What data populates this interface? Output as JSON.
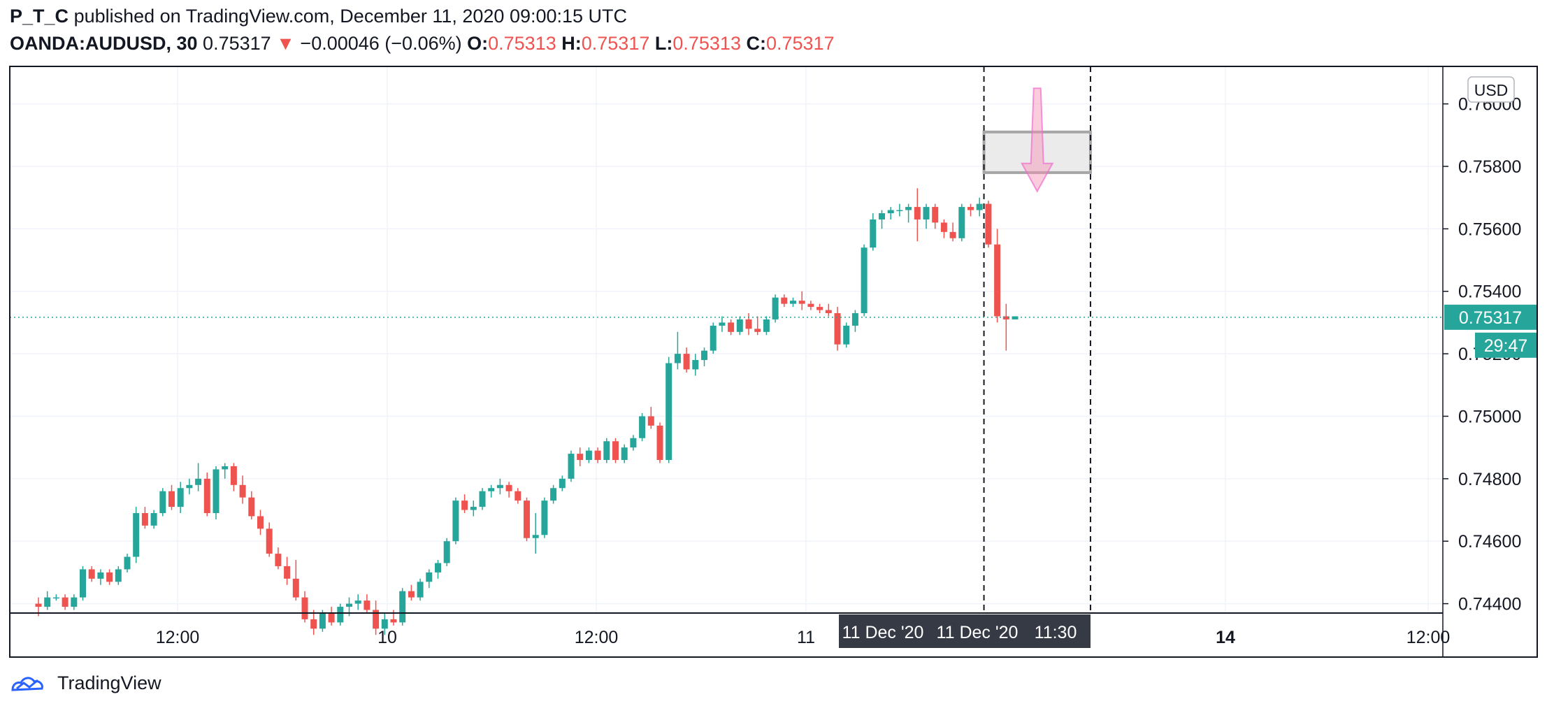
{
  "header": {
    "author": "P_T_C",
    "published": "published on TradingView.com, December 11, 2020 09:00:15 UTC",
    "symbol": "OANDA:AUDUSD, 30",
    "last": "0.75317",
    "change": "−0.00046 (−0.06%)",
    "o_label": "O:",
    "o_value": "0.75313",
    "h_label": "H:",
    "h_value": "0.75317",
    "l_label": "L:",
    "l_value": "0.75313",
    "c_label": "C:",
    "c_value": "0.75317"
  },
  "footer": {
    "brand": "TradingView"
  },
  "colors": {
    "up": "#26a69a",
    "down": "#ef5350",
    "grid": "#f0f3fa",
    "arrow": "#f48fb1"
  },
  "chart_data": {
    "type": "candlestick",
    "currency_label": "USD",
    "ylim": [
      0.7437,
      0.7612
    ],
    "y_ticks": [
      "0.74400",
      "0.74600",
      "0.74800",
      "0.75000",
      "0.75200",
      "0.75400",
      "0.75600",
      "0.75800",
      "0.76000"
    ],
    "x_ticks": [
      "12:00",
      "10",
      "12:00",
      "11",
      "14",
      "12:00"
    ],
    "x_tick_bold": [
      false,
      false,
      false,
      false,
      true,
      false
    ],
    "last_price_label": "0.75317",
    "last_price": 0.75317,
    "countdown_label": "29:47",
    "marker_labels": [
      "11 Dec '20",
      "11 Dec '20",
      "11:30"
    ],
    "candles": [
      [
        0.744,
        0.7442,
        0.7436,
        0.7439
      ],
      [
        0.7439,
        0.7444,
        0.7438,
        0.7442
      ],
      [
        0.7442,
        0.7443,
        0.7441,
        0.7442
      ],
      [
        0.7442,
        0.7443,
        0.7438,
        0.7439
      ],
      [
        0.7439,
        0.7443,
        0.7438,
        0.7442
      ],
      [
        0.7442,
        0.7452,
        0.7441,
        0.7451
      ],
      [
        0.7451,
        0.7452,
        0.7447,
        0.7448
      ],
      [
        0.7448,
        0.7451,
        0.7446,
        0.745
      ],
      [
        0.745,
        0.7451,
        0.7446,
        0.7447
      ],
      [
        0.7447,
        0.7452,
        0.7446,
        0.7451
      ],
      [
        0.7451,
        0.7456,
        0.745,
        0.7455
      ],
      [
        0.7455,
        0.7471,
        0.7453,
        0.7469
      ],
      [
        0.7469,
        0.7471,
        0.7464,
        0.7465
      ],
      [
        0.7465,
        0.747,
        0.7464,
        0.7469
      ],
      [
        0.7469,
        0.7477,
        0.7468,
        0.7476
      ],
      [
        0.7476,
        0.7478,
        0.747,
        0.7471
      ],
      [
        0.7471,
        0.7479,
        0.7469,
        0.7477
      ],
      [
        0.7477,
        0.748,
        0.7475,
        0.7478
      ],
      [
        0.7478,
        0.7485,
        0.7476,
        0.748
      ],
      [
        0.748,
        0.7482,
        0.7468,
        0.7469
      ],
      [
        0.7469,
        0.7484,
        0.7467,
        0.7483
      ],
      [
        0.7483,
        0.7485,
        0.748,
        0.7484
      ],
      [
        0.7484,
        0.7485,
        0.7476,
        0.7478
      ],
      [
        0.7478,
        0.7481,
        0.7472,
        0.7474
      ],
      [
        0.7474,
        0.7476,
        0.7467,
        0.7468
      ],
      [
        0.7468,
        0.747,
        0.7462,
        0.7464
      ],
      [
        0.7464,
        0.7466,
        0.7455,
        0.7456
      ],
      [
        0.7456,
        0.7458,
        0.7451,
        0.7452
      ],
      [
        0.7452,
        0.7455,
        0.7446,
        0.7448
      ],
      [
        0.7448,
        0.7454,
        0.7441,
        0.7442
      ],
      [
        0.7442,
        0.7444,
        0.7434,
        0.7435
      ],
      [
        0.7435,
        0.7438,
        0.743,
        0.7432
      ],
      [
        0.7432,
        0.7438,
        0.7431,
        0.7437
      ],
      [
        0.7437,
        0.7439,
        0.7433,
        0.7434
      ],
      [
        0.7434,
        0.744,
        0.7433,
        0.7439
      ],
      [
        0.7439,
        0.7442,
        0.7436,
        0.744
      ],
      [
        0.744,
        0.7443,
        0.7438,
        0.7441
      ],
      [
        0.7441,
        0.7443,
        0.7437,
        0.7438
      ],
      [
        0.7438,
        0.7441,
        0.743,
        0.7432
      ],
      [
        0.7432,
        0.7437,
        0.743,
        0.7435
      ],
      [
        0.7435,
        0.7438,
        0.7433,
        0.7434
      ],
      [
        0.7434,
        0.7445,
        0.7433,
        0.7444
      ],
      [
        0.7444,
        0.7446,
        0.7441,
        0.7442
      ],
      [
        0.7442,
        0.7448,
        0.7441,
        0.7447
      ],
      [
        0.7447,
        0.7451,
        0.7445,
        0.745
      ],
      [
        0.745,
        0.7454,
        0.7448,
        0.7453
      ],
      [
        0.7453,
        0.7461,
        0.7452,
        0.746
      ],
      [
        0.746,
        0.7474,
        0.7459,
        0.7473
      ],
      [
        0.7473,
        0.7475,
        0.7469,
        0.747
      ],
      [
        0.747,
        0.7473,
        0.7468,
        0.7471
      ],
      [
        0.7471,
        0.7477,
        0.747,
        0.7476
      ],
      [
        0.7476,
        0.7478,
        0.7474,
        0.7477
      ],
      [
        0.7477,
        0.748,
        0.7475,
        0.7478
      ],
      [
        0.7478,
        0.7479,
        0.7474,
        0.7476
      ],
      [
        0.7476,
        0.7477,
        0.7472,
        0.7473
      ],
      [
        0.7473,
        0.7474,
        0.746,
        0.7461
      ],
      [
        0.7461,
        0.7469,
        0.7456,
        0.7462
      ],
      [
        0.7462,
        0.7474,
        0.7461,
        0.7473
      ],
      [
        0.7473,
        0.7478,
        0.7472,
        0.7477
      ],
      [
        0.7477,
        0.7481,
        0.7476,
        0.748
      ],
      [
        0.748,
        0.7489,
        0.7479,
        0.7488
      ],
      [
        0.7488,
        0.749,
        0.7484,
        0.7486
      ],
      [
        0.7486,
        0.749,
        0.7485,
        0.7489
      ],
      [
        0.7489,
        0.749,
        0.7485,
        0.7486
      ],
      [
        0.7486,
        0.7493,
        0.7485,
        0.7492
      ],
      [
        0.7492,
        0.7493,
        0.7485,
        0.7486
      ],
      [
        0.7486,
        0.7491,
        0.7485,
        0.749
      ],
      [
        0.749,
        0.7494,
        0.7489,
        0.7493
      ],
      [
        0.7493,
        0.7501,
        0.7492,
        0.75
      ],
      [
        0.75,
        0.7503,
        0.7496,
        0.7497
      ],
      [
        0.7497,
        0.7498,
        0.7485,
        0.7486
      ],
      [
        0.7486,
        0.7519,
        0.7485,
        0.7517
      ],
      [
        0.7517,
        0.7527,
        0.7515,
        0.752
      ],
      [
        0.752,
        0.7522,
        0.7514,
        0.7515
      ],
      [
        0.7515,
        0.752,
        0.7513,
        0.7518
      ],
      [
        0.7518,
        0.7522,
        0.7516,
        0.7521
      ],
      [
        0.7521,
        0.753,
        0.752,
        0.7529
      ],
      [
        0.7529,
        0.7532,
        0.7527,
        0.753
      ],
      [
        0.753,
        0.7531,
        0.7526,
        0.7527
      ],
      [
        0.7527,
        0.7532,
        0.7526,
        0.7531
      ],
      [
        0.7531,
        0.7533,
        0.7526,
        0.7528
      ],
      [
        0.7528,
        0.7532,
        0.7526,
        0.7527
      ],
      [
        0.7527,
        0.7532,
        0.7526,
        0.7531
      ],
      [
        0.7531,
        0.7539,
        0.753,
        0.7538
      ],
      [
        0.7538,
        0.7539,
        0.7535,
        0.7536
      ],
      [
        0.7536,
        0.7538,
        0.7535,
        0.7537
      ],
      [
        0.7537,
        0.754,
        0.7534,
        0.7536
      ],
      [
        0.7536,
        0.7537,
        0.7534,
        0.7535
      ],
      [
        0.7535,
        0.7536,
        0.7533,
        0.7534
      ],
      [
        0.7534,
        0.7536,
        0.7532,
        0.7533
      ],
      [
        0.7533,
        0.7535,
        0.7521,
        0.7523
      ],
      [
        0.7523,
        0.753,
        0.7522,
        0.7529
      ],
      [
        0.7529,
        0.7534,
        0.7527,
        0.7533
      ],
      [
        0.7533,
        0.7555,
        0.7532,
        0.7554
      ],
      [
        0.7554,
        0.7565,
        0.7553,
        0.7563
      ],
      [
        0.7563,
        0.7566,
        0.756,
        0.7565
      ],
      [
        0.7565,
        0.7567,
        0.7563,
        0.7566
      ],
      [
        0.7566,
        0.7568,
        0.7564,
        0.7566
      ],
      [
        0.7566,
        0.7568,
        0.7562,
        0.7567
      ],
      [
        0.7567,
        0.7573,
        0.7556,
        0.7563
      ],
      [
        0.7563,
        0.7568,
        0.756,
        0.7567
      ],
      [
        0.7567,
        0.7568,
        0.756,
        0.7562
      ],
      [
        0.7562,
        0.7563,
        0.7557,
        0.7559
      ],
      [
        0.7559,
        0.7562,
        0.7556,
        0.7557
      ],
      [
        0.7557,
        0.7568,
        0.7556,
        0.7567
      ],
      [
        0.7567,
        0.7568,
        0.7564,
        0.7566
      ],
      [
        0.7566,
        0.757,
        0.7564,
        0.7568
      ],
      [
        0.7568,
        0.7569,
        0.7554,
        0.7555
      ],
      [
        0.7555,
        0.756,
        0.753,
        0.7532
      ],
      [
        0.7532,
        0.7536,
        0.7521,
        0.7531
      ],
      [
        0.7531,
        0.7532,
        0.7531,
        0.7532
      ]
    ],
    "vlines_at_index": [
      106.5,
      118.5
    ],
    "zone": {
      "x_index": [
        106.5,
        118.5
      ],
      "price": [
        0.7578,
        0.7591
      ]
    },
    "arrow": {
      "x_index": 112.5,
      "from_price": 0.7605,
      "to_price": 0.7572
    }
  }
}
